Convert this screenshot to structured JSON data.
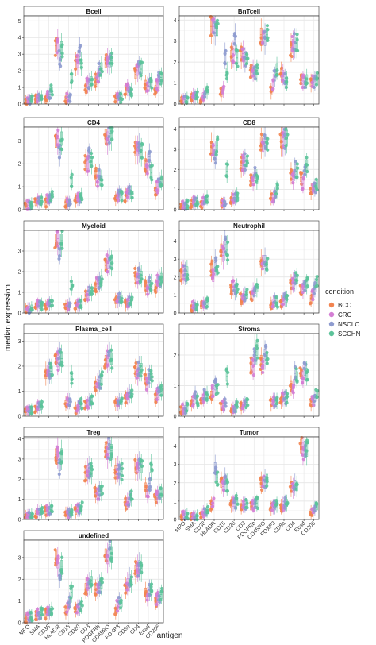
{
  "chart_data": {
    "type": "box",
    "xlabel": "antigen",
    "ylabel": "median expression",
    "legend": {
      "title": "condition",
      "position": "right"
    },
    "conditions": [
      {
        "name": "BCC",
        "color": "#F28450"
      },
      {
        "name": "CRC",
        "color": "#D47ED4"
      },
      {
        "name": "NSCLC",
        "color": "#8E9BCF"
      },
      {
        "name": "SCCHN",
        "color": "#5CC39A"
      }
    ],
    "antigens": [
      "MPO",
      "SMA",
      "CD38",
      "HLADR",
      "CD15",
      "CD20",
      "CD3",
      "PDGFRb",
      "CD45RO",
      "FOXP3",
      "CD8a",
      "CD4",
      "Ecad",
      "CD206"
    ],
    "panels": [
      {
        "name": "Bcell",
        "ylim": [
          0,
          5.3
        ],
        "yticks": [
          0,
          1,
          2,
          3,
          4,
          5
        ],
        "medians": [
          [
            0.15,
            0.2,
            0.2,
            0.25
          ],
          [
            0.3,
            0.4,
            0.35,
            0.4
          ],
          [
            0.2,
            0.5,
            0.6,
            0.8
          ],
          [
            3.5,
            3.6,
            2.8,
            3.4
          ],
          [
            0.3,
            0.4,
            0.3,
            1.5
          ],
          [
            2.4,
            2.5,
            3.2,
            2.4
          ],
          [
            1.0,
            1.2,
            1.3,
            1.4
          ],
          [
            1.4,
            1.6,
            2.0,
            2.2
          ],
          [
            2.5,
            2.6,
            2.5,
            2.6
          ],
          [
            0.3,
            0.4,
            0.4,
            0.4
          ],
          [
            0.8,
            1.0,
            0.7,
            0.8
          ],
          [
            1.8,
            2.0,
            2.2,
            2.1
          ],
          [
            1.2,
            1.1,
            1.3,
            1.3
          ],
          [
            0.9,
            1.2,
            1.5,
            1.6
          ]
        ]
      },
      {
        "name": "BnTcell",
        "ylim": [
          0,
          4.2
        ],
        "yticks": [
          0,
          1,
          2,
          3,
          4
        ],
        "medians": [
          [
            0.15,
            0.2,
            0.2,
            0.25
          ],
          [
            0.3,
            0.4,
            0.35,
            0.4
          ],
          [
            0.2,
            0.4,
            0.5,
            0.6
          ],
          [
            3.7,
            3.7,
            3.6,
            3.6
          ],
          [
            0.5,
            0.7,
            2.3,
            1.5
          ],
          [
            2.3,
            2.4,
            3.1,
            2.2
          ],
          [
            2.3,
            2.4,
            2.1,
            2.2
          ],
          [
            1.5,
            1.6,
            1.5,
            1.6
          ],
          [
            3.3,
            3.2,
            3.1,
            3.3
          ],
          [
            0.6,
            1.0,
            1.3,
            1.7
          ],
          [
            1.5,
            1.4,
            1.2,
            1.1
          ],
          [
            2.7,
            2.8,
            2.9,
            2.9
          ],
          [
            1.2,
            1.1,
            1.1,
            1.2
          ],
          [
            1.0,
            1.1,
            1.1,
            1.2
          ]
        ]
      },
      {
        "name": "CD4",
        "ylim": [
          0,
          3.6
        ],
        "yticks": [
          0,
          1,
          2,
          3
        ],
        "medians": [
          [
            0.15,
            0.2,
            0.2,
            0.25
          ],
          [
            0.3,
            0.4,
            0.35,
            0.4
          ],
          [
            0.3,
            0.45,
            0.5,
            0.6
          ],
          [
            3.0,
            3.1,
            2.5,
            3.1
          ],
          [
            0.3,
            0.3,
            0.3,
            1.3
          ],
          [
            0.4,
            0.5,
            0.5,
            0.6
          ],
          [
            2.1,
            2.0,
            2.3,
            2.1
          ],
          [
            1.5,
            1.3,
            1.5,
            1.3
          ],
          [
            3.2,
            3.1,
            3.3,
            3.3
          ],
          [
            0.5,
            0.6,
            0.7,
            0.6
          ],
          [
            0.6,
            0.7,
            0.8,
            0.7
          ],
          [
            2.6,
            2.6,
            2.7,
            2.5
          ],
          [
            2.0,
            1.9,
            2.3,
            1.6
          ],
          [
            0.8,
            1.0,
            1.2,
            1.3
          ]
        ]
      },
      {
        "name": "CD8",
        "ylim": [
          0,
          4.1
        ],
        "yticks": [
          0,
          1,
          2,
          3,
          4
        ],
        "medians": [
          [
            0.15,
            0.2,
            0.2,
            0.25
          ],
          [
            0.3,
            0.4,
            0.35,
            0.4
          ],
          [
            0.3,
            0.45,
            0.5,
            0.6
          ],
          [
            3.1,
            3.0,
            2.7,
            3.2
          ],
          [
            0.3,
            0.3,
            0.3,
            1.9
          ],
          [
            0.5,
            0.6,
            0.6,
            0.7
          ],
          [
            2.2,
            2.3,
            2.4,
            2.4
          ],
          [
            1.5,
            1.4,
            1.8,
            1.5
          ],
          [
            3.3,
            3.2,
            3.4,
            3.3
          ],
          [
            0.6,
            0.6,
            0.7,
            1.0
          ],
          [
            3.4,
            3.4,
            3.5,
            3.6
          ],
          [
            1.8,
            1.5,
            2.0,
            1.9
          ],
          [
            1.6,
            1.3,
            2.0,
            2.2
          ],
          [
            0.9,
            1.0,
            1.1,
            1.3
          ]
        ]
      },
      {
        "name": "Myeloid",
        "ylim": [
          0,
          4.0
        ],
        "yticks": [
          0,
          1,
          2,
          3
        ],
        "medians": [
          [
            0.15,
            0.2,
            0.2,
            0.25
          ],
          [
            0.3,
            0.4,
            0.35,
            0.4
          ],
          [
            0.3,
            0.4,
            0.45,
            0.5
          ],
          [
            3.5,
            3.6,
            3.1,
            3.5
          ],
          [
            0.3,
            0.35,
            0.4,
            1.3
          ],
          [
            0.3,
            0.4,
            0.4,
            0.5
          ],
          [
            0.8,
            0.9,
            1.0,
            1.0
          ],
          [
            1.3,
            1.4,
            1.5,
            1.6
          ],
          [
            2.3,
            2.4,
            2.5,
            2.4
          ],
          [
            0.6,
            0.6,
            0.7,
            0.7
          ],
          [
            0.4,
            0.5,
            0.6,
            0.6
          ],
          [
            1.8,
            1.7,
            1.9,
            1.8
          ],
          [
            1.3,
            1.2,
            1.4,
            1.4
          ],
          [
            1.2,
            1.5,
            1.6,
            1.7
          ]
        ]
      },
      {
        "name": "Neutrophil",
        "ylim": [
          0,
          4.6
        ],
        "yticks": [
          0,
          1,
          2,
          3,
          4
        ],
        "medians": [
          [
            2.2,
            2.3,
            2.2,
            2.3
          ],
          [
            0.3,
            0.4,
            0.35,
            0.3
          ],
          [
            0.4,
            0.5,
            0.5,
            0.6
          ],
          [
            2.5,
            2.0,
            2.8,
            2.4
          ],
          [
            3.5,
            3.2,
            3.8,
            3.5
          ],
          [
            1.3,
            1.5,
            1.2,
            1.4
          ],
          [
            0.8,
            0.9,
            1.0,
            1.0
          ],
          [
            1.0,
            1.2,
            1.3,
            1.4
          ],
          [
            2.8,
            2.9,
            2.9,
            2.8
          ],
          [
            0.5,
            0.6,
            0.7,
            0.6
          ],
          [
            0.6,
            0.7,
            0.8,
            0.8
          ],
          [
            1.6,
            1.7,
            1.8,
            1.9
          ],
          [
            1.2,
            1.3,
            1.5,
            1.6
          ],
          [
            0.8,
            1.0,
            1.4,
            1.8
          ]
        ]
      },
      {
        "name": "Plasma_cell",
        "ylim": [
          0,
          3.3
        ],
        "yticks": [
          0,
          1,
          2,
          3
        ],
        "medians": [
          [
            0.15,
            0.2,
            0.2,
            0.25
          ],
          [
            0.3,
            0.4,
            0.35,
            0.4
          ],
          [
            1.7,
            1.8,
            1.8,
            1.8
          ],
          [
            2.3,
            2.2,
            2.4,
            2.3
          ],
          [
            0.5,
            0.6,
            0.6,
            1.6
          ],
          [
            0.3,
            0.35,
            0.4,
            0.5
          ],
          [
            0.5,
            0.5,
            0.6,
            0.6
          ],
          [
            1.2,
            1.3,
            1.4,
            1.5
          ],
          [
            2.2,
            2.3,
            2.4,
            2.3
          ],
          [
            0.5,
            0.5,
            0.6,
            0.6
          ],
          [
            0.7,
            0.8,
            0.9,
            0.9
          ],
          [
            1.8,
            1.7,
            1.9,
            1.9
          ],
          [
            1.5,
            1.3,
            1.6,
            1.6
          ],
          [
            0.7,
            0.9,
            1.0,
            1.0
          ]
        ]
      },
      {
        "name": "Stroma",
        "ylim": [
          0,
          2.7
        ],
        "yticks": [
          0,
          1,
          2
        ],
        "medians": [
          [
            0.2,
            0.25,
            0.25,
            0.3
          ],
          [
            0.4,
            0.5,
            0.7,
            0.5
          ],
          [
            0.5,
            0.6,
            0.7,
            0.7
          ],
          [
            0.7,
            0.8,
            1.0,
            0.9
          ],
          [
            0.3,
            0.35,
            0.4,
            1.3
          ],
          [
            0.2,
            0.25,
            0.3,
            0.35
          ],
          [
            0.3,
            0.35,
            0.4,
            0.45
          ],
          [
            1.7,
            1.6,
            1.9,
            2.2
          ],
          [
            1.8,
            1.7,
            2.0,
            1.9
          ],
          [
            0.4,
            0.5,
            0.5,
            0.5
          ],
          [
            0.5,
            0.6,
            0.6,
            0.6
          ],
          [
            1.0,
            0.9,
            1.4,
            1.3
          ],
          [
            1.4,
            1.3,
            1.5,
            1.4
          ],
          [
            0.4,
            0.5,
            0.6,
            0.7
          ]
        ]
      },
      {
        "name": "Treg",
        "ylim": [
          0,
          4.1
        ],
        "yticks": [
          0,
          1,
          2,
          3,
          4
        ],
        "medians": [
          [
            0.15,
            0.2,
            0.2,
            0.25
          ],
          [
            0.3,
            0.4,
            0.35,
            0.4
          ],
          [
            0.4,
            0.45,
            0.5,
            0.6
          ],
          [
            3.2,
            3.3,
            2.7,
            3.2
          ],
          [
            0.3,
            0.3,
            0.3,
            0.4
          ],
          [
            0.4,
            0.5,
            0.5,
            0.6
          ],
          [
            2.3,
            2.4,
            2.5,
            2.4
          ],
          [
            1.3,
            1.2,
            1.4,
            1.4
          ],
          [
            3.4,
            3.3,
            3.6,
            3.4
          ],
          [
            2.4,
            2.5,
            2.3,
            2.4
          ],
          [
            0.8,
            0.9,
            1.0,
            1.1
          ],
          [
            2.6,
            2.6,
            2.7,
            2.6
          ],
          [
            1.6,
            1.3,
            1.8,
            2.6
          ],
          [
            1.1,
            1.2,
            1.3,
            1.3
          ]
        ]
      },
      {
        "name": "Tumor",
        "ylim": [
          0,
          4.5
        ],
        "yticks": [
          0,
          1,
          2,
          3,
          4
        ],
        "medians": [
          [
            0.15,
            0.2,
            0.2,
            0.25
          ],
          [
            0.1,
            0.15,
            0.15,
            0.2
          ],
          [
            0.3,
            0.4,
            0.45,
            0.5
          ],
          [
            0.8,
            0.9,
            2.8,
            2.3
          ],
          [
            2.0,
            1.8,
            2.2,
            1.9
          ],
          [
            0.8,
            0.9,
            0.9,
            1.0
          ],
          [
            0.7,
            0.8,
            0.8,
            0.9
          ],
          [
            0.7,
            0.8,
            0.9,
            0.9
          ],
          [
            2.0,
            2.1,
            2.1,
            2.2
          ],
          [
            0.6,
            0.7,
            0.7,
            0.8
          ],
          [
            0.7,
            0.8,
            0.9,
            0.9
          ],
          [
            1.8,
            1.7,
            1.9,
            1.8
          ],
          [
            4.0,
            3.8,
            3.9,
            3.8
          ],
          [
            0.4,
            0.5,
            0.6,
            0.7
          ]
        ]
      },
      {
        "name": "undefined",
        "ylim": [
          0,
          3.8
        ],
        "yticks": [
          0,
          1,
          2,
          3
        ],
        "medians": [
          [
            0.2,
            0.25,
            0.3,
            0.3
          ],
          [
            0.35,
            0.4,
            0.4,
            0.45
          ],
          [
            0.4,
            0.5,
            0.5,
            0.6
          ],
          [
            3.0,
            2.8,
            2.2,
            2.6
          ],
          [
            0.5,
            0.7,
            1.0,
            1.4
          ],
          [
            0.6,
            0.7,
            0.7,
            0.8
          ],
          [
            1.6,
            1.7,
            1.8,
            1.9
          ],
          [
            1.5,
            1.6,
            1.7,
            1.8
          ],
          [
            3.1,
            3.0,
            3.3,
            3.2
          ],
          [
            0.5,
            0.8,
            1.0,
            0.9
          ],
          [
            1.6,
            1.8,
            2.0,
            1.9
          ],
          [
            2.4,
            2.5,
            2.6,
            2.5
          ],
          [
            1.4,
            1.2,
            1.5,
            1.5
          ],
          [
            1.0,
            1.1,
            1.2,
            1.3
          ]
        ]
      }
    ]
  }
}
